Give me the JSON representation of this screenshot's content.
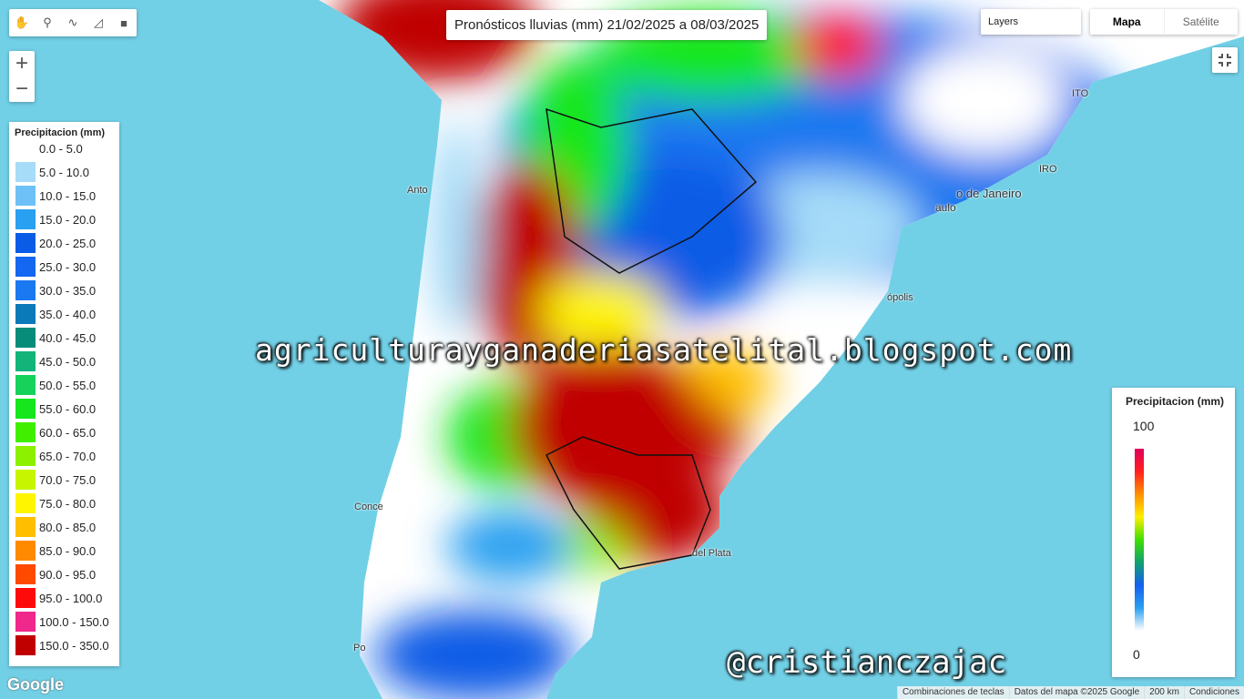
{
  "title": "Pronósticos lluvias (mm) 21/02/2025 a 08/03/2025",
  "layers_label": "Layers",
  "map_types": [
    "Mapa",
    "Satélite"
  ],
  "legend": {
    "title": "Precipitacion (mm)",
    "items": [
      {
        "label": "0.0 - 5.0",
        "color": null
      },
      {
        "label": "5.0 - 10.0",
        "color": "#a6dcf8"
      },
      {
        "label": "10.0 - 15.0",
        "color": "#6ec1f7"
      },
      {
        "label": "15.0 - 20.0",
        "color": "#2aa0f0"
      },
      {
        "label": "20.0 - 25.0",
        "color": "#0a5be6"
      },
      {
        "label": "25.0 - 30.0",
        "color": "#1467f0"
      },
      {
        "label": "30.0 - 35.0",
        "color": "#1a78f0"
      },
      {
        "label": "35.0 - 40.0",
        "color": "#0a7ab8"
      },
      {
        "label": "40.0 - 45.0",
        "color": "#078c7a"
      },
      {
        "label": "45.0 - 50.0",
        "color": "#12b47a"
      },
      {
        "label": "50.0 - 55.0",
        "color": "#17d25a"
      },
      {
        "label": "55.0 - 60.0",
        "color": "#15e61e"
      },
      {
        "label": "60.0 - 65.0",
        "color": "#40ef00"
      },
      {
        "label": "65.0 - 70.0",
        "color": "#8cf000"
      },
      {
        "label": "70.0 - 75.0",
        "color": "#c7f500"
      },
      {
        "label": "75.0 - 80.0",
        "color": "#fff500"
      },
      {
        "label": "80.0 - 85.0",
        "color": "#ffbf00"
      },
      {
        "label": "85.0 - 90.0",
        "color": "#ff8a00"
      },
      {
        "label": "90.0 - 95.0",
        "color": "#ff4a00"
      },
      {
        "label": "95.0 - 100.0",
        "color": "#ff0a0a"
      },
      {
        "label": "100.0 - 150.0",
        "color": "#f0288c"
      },
      {
        "label": "150.0 - 350.0",
        "color": "#c00000"
      }
    ]
  },
  "colorbar": {
    "title": "Precipitacion (mm)",
    "max_label": "100",
    "min_label": "0",
    "colors": [
      "#e0005a",
      "#ff2020",
      "#ff9000",
      "#ffee00",
      "#40e000",
      "#10a070",
      "#1460f0",
      "#2aa0f0",
      "#ffffff"
    ]
  },
  "place_labels": [
    "Anto",
    "Conce",
    "o de Janeiro",
    "aulo",
    "ópolis",
    "del Plata",
    "Po",
    "ITO",
    "IRO"
  ],
  "watermarks": [
    "agriculturayganaderiasatelital.blogspot.com",
    "@cristianczajac"
  ],
  "footer": {
    "logo": "Google",
    "shortcuts": "Combinaciones de teclas",
    "map_data": "Datos del mapa ©2025 Google",
    "scale": "200 km",
    "terms": "Condiciones"
  }
}
